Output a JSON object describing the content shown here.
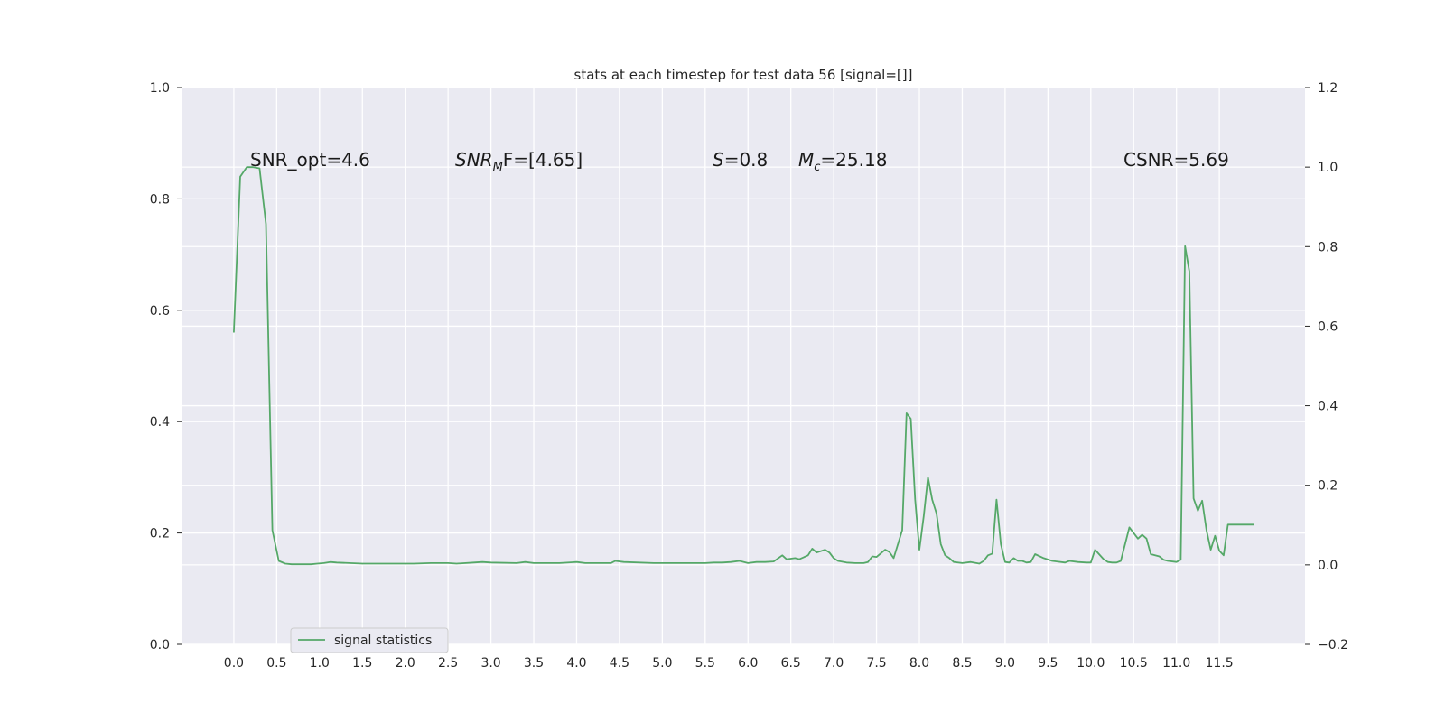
{
  "chart_data": {
    "type": "line",
    "title": "stats at each timestep for test data 56 [signal=[]]",
    "xlabel": "",
    "ylabel": "",
    "xlim": [
      -0.6,
      12.5
    ],
    "ylim": [
      0.0,
      1.0
    ],
    "y2lim": [
      -0.2,
      1.2
    ],
    "grid": true,
    "legend_position": "bottom-left",
    "x_ticks": [
      "0.0",
      "0.5",
      "1.0",
      "1.5",
      "2.0",
      "2.5",
      "3.0",
      "3.5",
      "4.0",
      "4.5",
      "5.0",
      "5.5",
      "6.0",
      "6.5",
      "7.0",
      "7.5",
      "8.0",
      "8.5",
      "9.0",
      "9.5",
      "10.0",
      "10.5",
      "11.0",
      "11.5"
    ],
    "y_ticks": [
      "0.0",
      "0.2",
      "0.4",
      "0.6",
      "0.8",
      "1.0"
    ],
    "y2_ticks": [
      "−0.2",
      "0.0",
      "0.2",
      "0.4",
      "0.6",
      "0.8",
      "1.0",
      "1.2"
    ],
    "annotations": {
      "snr_opt": "SNR_opt=4.6",
      "snr_mf_main": "SNR",
      "snr_mf_sub": "M",
      "snr_mf_rest": "F=[4.65]",
      "s_symbol": "S",
      "s_value": "=0.8",
      "mc_symbol": "M",
      "mc_sub": "c",
      "mc_value": "=25.18",
      "csnr": "CSNR=5.69"
    },
    "series": [
      {
        "name": "signal statistics",
        "color": "#55a868",
        "x": [
          0.0,
          0.075,
          0.15,
          0.225,
          0.3,
          0.375,
          0.45,
          0.525,
          0.6,
          0.675,
          0.75,
          0.825,
          0.9,
          0.975,
          1.05,
          1.125,
          1.2,
          1.5,
          2.0,
          2.1,
          2.3,
          2.5,
          2.6,
          2.8,
          2.9,
          3.0,
          3.3,
          3.4,
          3.5,
          3.8,
          4.0,
          4.1,
          4.4,
          4.45,
          4.55,
          4.9,
          5.0,
          5.2,
          5.5,
          5.6,
          5.7,
          5.8,
          5.9,
          6.0,
          6.1,
          6.2,
          6.3,
          6.4,
          6.45,
          6.55,
          6.6,
          6.7,
          6.75,
          6.8,
          6.9,
          6.95,
          7.0,
          7.05,
          7.15,
          7.25,
          7.35,
          7.4,
          7.45,
          7.5,
          7.6,
          7.65,
          7.7,
          7.8,
          7.85,
          7.9,
          7.95,
          8.0,
          8.05,
          8.1,
          8.15,
          8.2,
          8.25,
          8.3,
          8.35,
          8.4,
          8.5,
          8.6,
          8.7,
          8.75,
          8.8,
          8.85,
          8.9,
          8.95,
          9.0,
          9.05,
          9.1,
          9.15,
          9.2,
          9.25,
          9.3,
          9.35,
          9.45,
          9.55,
          9.6,
          9.7,
          9.75,
          9.85,
          9.95,
          10.0,
          10.05,
          10.15,
          10.2,
          10.25,
          10.3,
          10.35,
          10.45,
          10.55,
          10.6,
          10.65,
          10.7,
          10.8,
          10.85,
          10.9,
          11.0,
          11.05,
          11.1,
          11.15,
          11.2,
          11.25,
          11.3,
          11.35,
          11.4,
          11.45,
          11.5,
          11.55,
          11.6,
          11.7,
          11.75,
          11.8,
          11.85,
          11.9
        ],
        "values": [
          0.56,
          0.84,
          0.857,
          0.857,
          0.855,
          0.755,
          0.205,
          0.15,
          0.145,
          0.144,
          0.144,
          0.144,
          0.144,
          0.145,
          0.146,
          0.148,
          0.147,
          0.145,
          0.145,
          0.145,
          0.146,
          0.146,
          0.145,
          0.147,
          0.148,
          0.147,
          0.146,
          0.148,
          0.146,
          0.146,
          0.148,
          0.146,
          0.146,
          0.15,
          0.148,
          0.146,
          0.146,
          0.146,
          0.146,
          0.147,
          0.147,
          0.148,
          0.15,
          0.146,
          0.148,
          0.148,
          0.149,
          0.16,
          0.153,
          0.155,
          0.153,
          0.16,
          0.172,
          0.165,
          0.17,
          0.165,
          0.155,
          0.15,
          0.147,
          0.146,
          0.146,
          0.148,
          0.158,
          0.157,
          0.17,
          0.166,
          0.155,
          0.205,
          0.415,
          0.405,
          0.26,
          0.17,
          0.23,
          0.3,
          0.26,
          0.235,
          0.18,
          0.16,
          0.155,
          0.148,
          0.146,
          0.148,
          0.145,
          0.15,
          0.16,
          0.163,
          0.26,
          0.18,
          0.148,
          0.147,
          0.155,
          0.15,
          0.15,
          0.147,
          0.148,
          0.162,
          0.155,
          0.15,
          0.149,
          0.147,
          0.15,
          0.148,
          0.147,
          0.147,
          0.17,
          0.153,
          0.148,
          0.147,
          0.147,
          0.15,
          0.21,
          0.19,
          0.197,
          0.19,
          0.162,
          0.158,
          0.152,
          0.15,
          0.148,
          0.152,
          0.715,
          0.67,
          0.262,
          0.24,
          0.258,
          0.205,
          0.17,
          0.195,
          0.168,
          0.16,
          0.215,
          0.215,
          0.215,
          0.215,
          0.215,
          0.215
        ]
      }
    ]
  }
}
